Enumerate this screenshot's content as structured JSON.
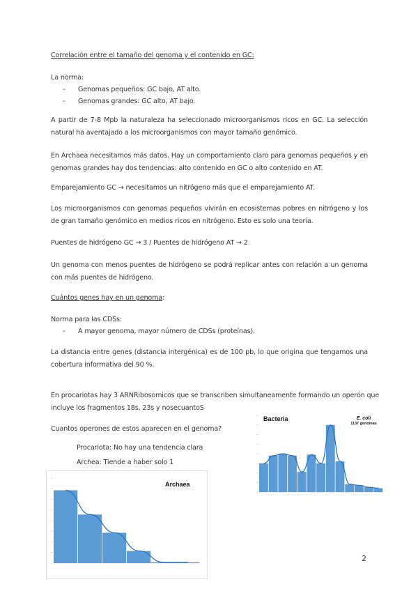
{
  "section1": {
    "heading": "Correlación entre el tamaño del genoma y el contenido en GC:",
    "norma_label": "La norma:",
    "bullets": [
      "Genomas pequeños: GC bajo, AT alto.",
      "Genomas grandes: GC alto, AT bajo."
    ],
    "p1": "A partir de 7-8 Mpb la naturaleza ha seleccionado microorganismos ricos en GC. La selección natural ha aventajado a los microorganismos con mayor tamaño genómico.",
    "p2": "En Archaea necesitamos más datos. Hay un comportamiento claro para genomas pequeños y en genomas grandes hay dos tendencias: alto contenido en GC o alto contenido en AT.",
    "p3": "Emparejamiento GC → necesitamos un nitrógeno más que el emparejamiento AT.",
    "p4": "Los microorganismos con genomas pequeños vivirán en ecosistemas pobres en nitrógeno y los de gran tamaño genómico en medios ricos en nitrógeno. Esto es solo una teoría.",
    "p5": "Puentes de hidrógeno GC → 3 / Puentes de hidrógeno AT → 2",
    "p6": "Un genoma con menos puentes de hidrógeno se podrá replicar antes con relación a un genoma con más puentes de hidrógeno."
  },
  "section2": {
    "heading": "Cuántos genes hay en un genoma",
    "heading_suffix": ":",
    "norma_label": "Norma para las CDSs:",
    "bullets": [
      "A mayor genoma, mayor número de CDSs (proteínas)."
    ],
    "p1": "La distancia entre genes (distancia intergénica) es de 100 pb, lo que origina que tengamos una cobertura informativa del 90 %.",
    "p2_line1": "En procariotas hay 3 ARNRibosomicos que se transcriben simultaneamente formando un operón que",
    "p2_line2": "incluye los fragmentos 18s, 23s y nosecuantoS",
    "question": "Cuantos operones de estos aparecen en el genoma?",
    "note1": "Procariota: No hay una tendencia clara",
    "note2": "Archea: Tiende a haber solo 1"
  },
  "page_number": "2",
  "chart_data": [
    {
      "type": "bar",
      "title": "Bacteria",
      "annotation": [
        "E. coli",
        "1137 genomas"
      ],
      "bar_color": "#5b9bd5",
      "line_color": "#1f6fc0",
      "values": [
        1500,
        1900,
        2000,
        1900,
        1050,
        1950,
        1500,
        3500,
        1600,
        400,
        350,
        250,
        200
      ],
      "ylim": [
        0,
        4000
      ]
    },
    {
      "type": "bar",
      "title": "Archaea",
      "bar_color": "#5b9bd5",
      "line_color": "#1f6fc0",
      "values": [
        180,
        120,
        75,
        30,
        2,
        2
      ],
      "ylim": [
        0,
        210
      ]
    }
  ]
}
